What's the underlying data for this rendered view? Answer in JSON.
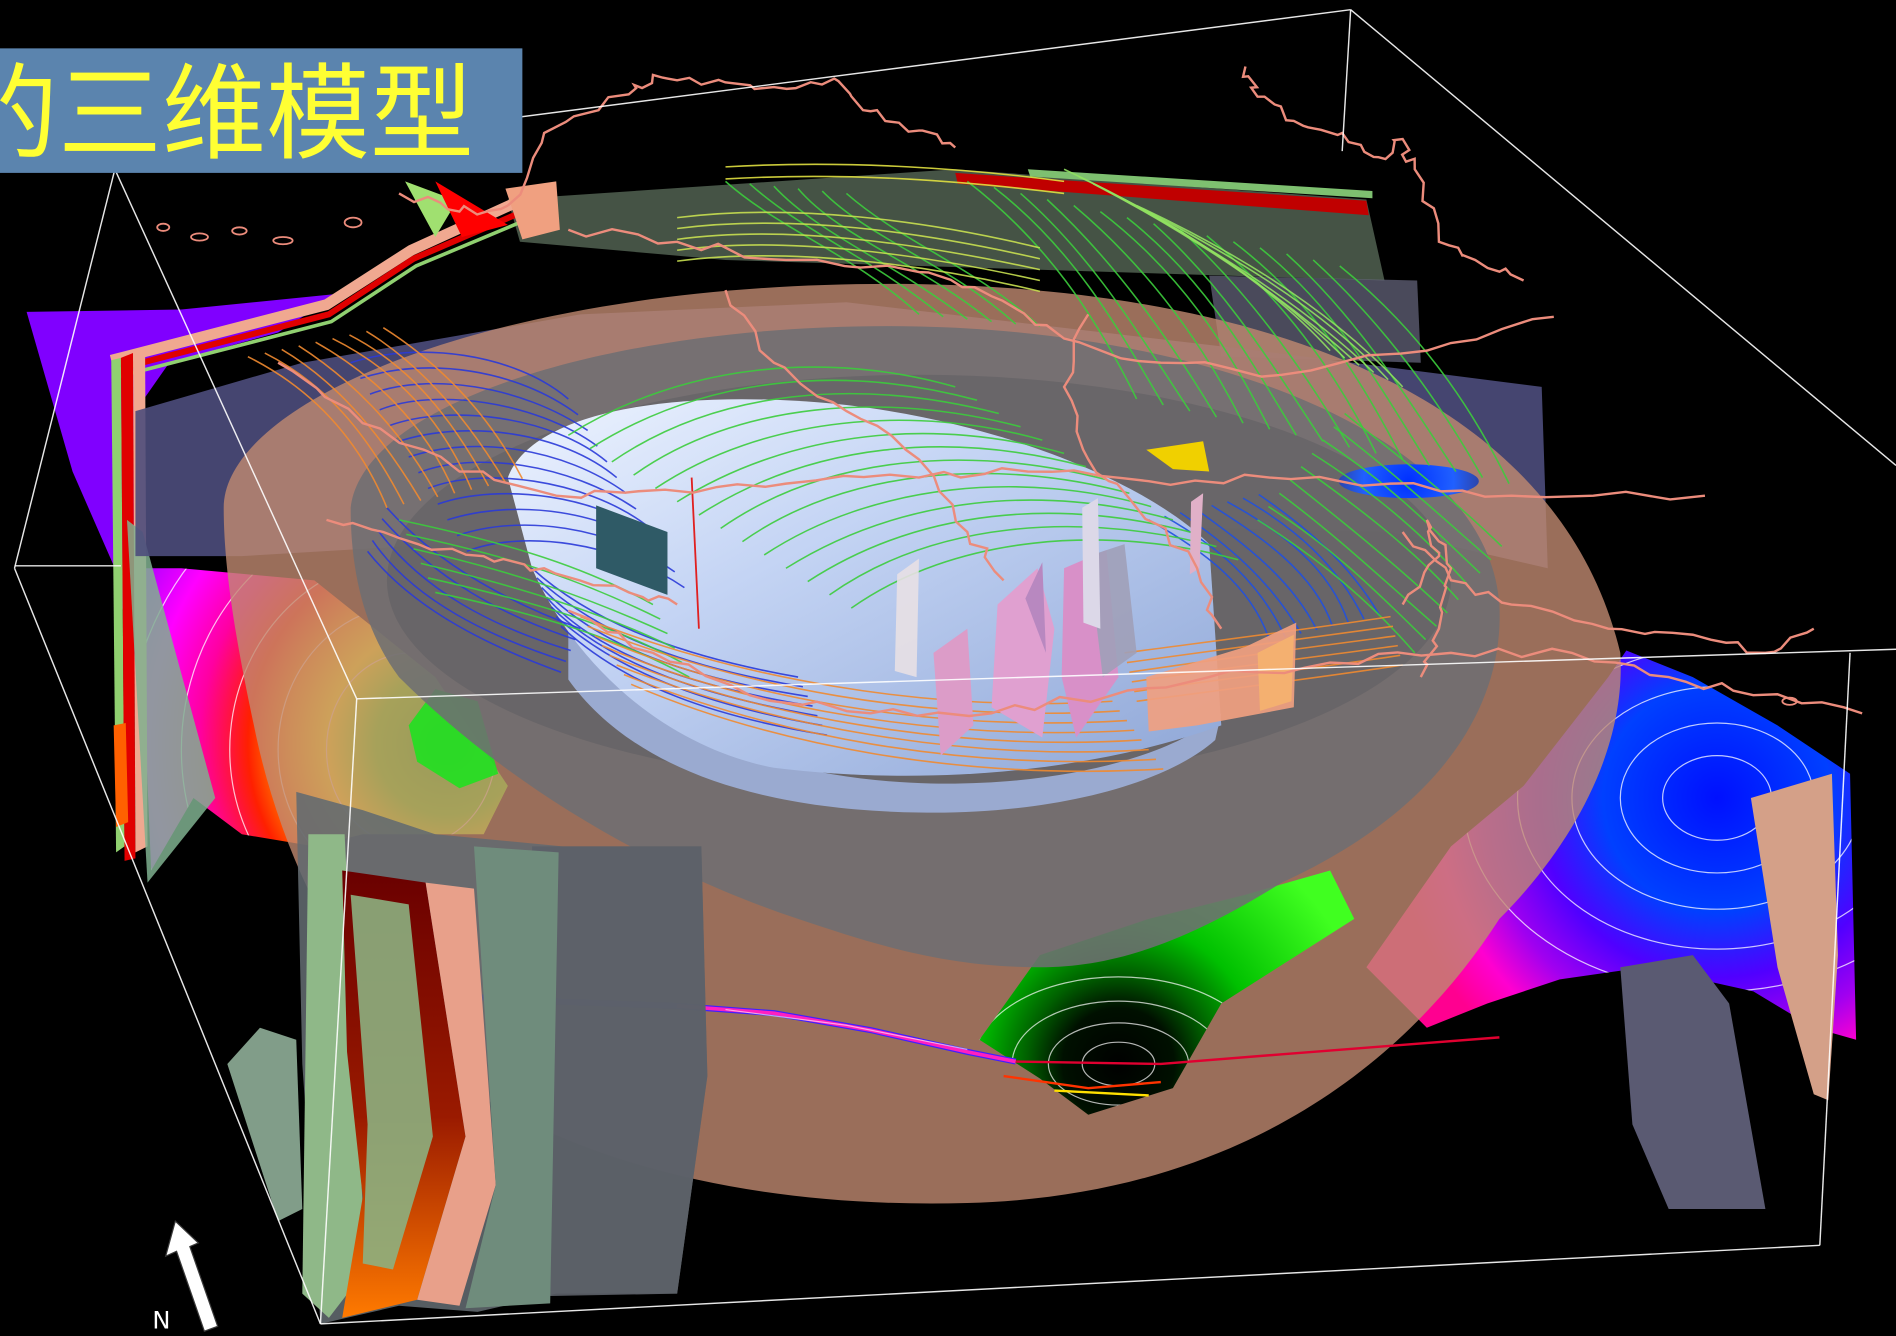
{
  "banner": {
    "text": "的三维模型"
  },
  "compass": {
    "label": "N",
    "icon": "north-arrow-icon"
  },
  "colors": {
    "background": "#000000",
    "banner_fill": "#5b84ae",
    "banner_text": "#ffff33",
    "wireframe": "#ffffff",
    "border_lines": "#ec8c7c",
    "brown_layer": "#c08a70",
    "grey_layer": "#6e6e72",
    "inner_bowl": "#b8cbef"
  }
}
